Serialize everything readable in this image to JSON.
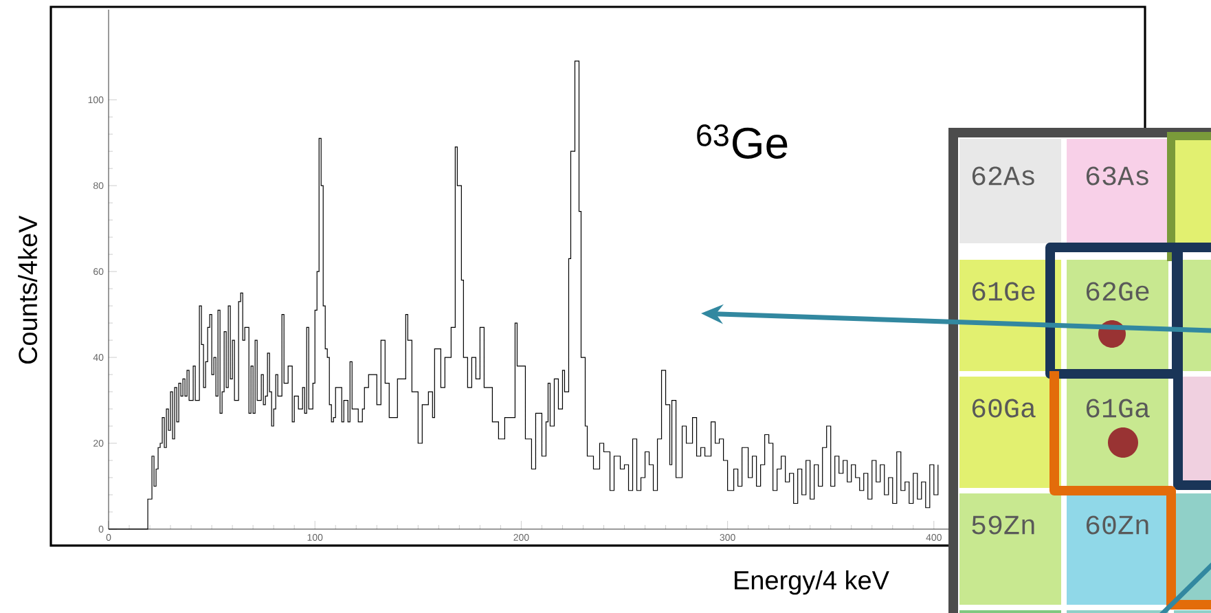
{
  "chart_data": {
    "type": "step",
    "xlabel": "Energy/4 keV",
    "ylabel": "Counts/4keV",
    "color": "#000000",
    "annotations": [
      "$^{63}$Ge",
      "62As",
      "63As",
      "61Ge",
      "62Ge",
      "60Ga",
      "61Ga",
      "59Zn",
      "60Zn"
    ],
    "x": [
      0,
      19,
      21,
      22,
      23,
      24,
      25,
      26,
      27,
      28,
      29,
      30,
      31,
      32,
      33,
      34,
      35,
      36,
      37,
      38,
      39,
      41,
      42,
      44,
      45,
      46,
      47,
      48,
      49,
      50,
      51,
      52,
      53,
      54,
      55,
      56,
      57,
      58,
      59,
      60,
      61,
      63,
      64,
      65,
      66,
      68,
      69,
      70,
      71,
      72,
      74,
      75,
      76,
      77,
      78,
      79,
      80,
      81,
      82,
      84,
      85,
      87,
      89,
      90,
      92,
      94,
      95,
      96,
      97,
      99,
      100,
      101,
      102,
      103,
      104,
      105,
      106,
      107,
      108,
      109,
      110,
      111,
      113,
      114,
      116,
      117,
      118,
      121,
      123,
      124,
      126,
      130,
      132,
      134,
      136,
      140,
      144,
      145,
      147,
      150,
      152,
      155,
      157,
      158,
      161,
      163,
      166,
      168,
      169,
      171,
      172,
      174,
      176,
      178,
      180,
      182,
      186,
      189,
      192,
      197,
      198,
      202,
      205,
      207,
      210,
      212,
      213,
      214,
      216,
      218,
      220,
      221,
      223,
      224,
      226,
      228,
      229,
      231,
      232,
      235,
      238,
      240,
      243,
      245,
      248,
      250,
      252,
      254,
      256,
      258,
      260,
      262,
      264,
      266,
      268,
      270,
      272,
      273,
      275,
      278,
      280,
      283,
      285,
      287,
      289,
      292,
      294,
      296,
      298,
      300,
      303,
      305,
      307,
      310,
      312,
      314,
      316,
      318,
      320,
      322,
      324,
      326,
      328,
      330,
      332,
      334,
      336,
      338,
      340,
      342,
      344,
      346,
      348,
      350,
      352,
      354,
      356,
      358,
      360,
      362,
      364,
      366,
      368,
      370,
      372,
      374,
      376,
      378,
      380,
      382,
      384,
      386,
      388,
      390,
      392,
      394,
      396,
      398,
      400,
      402
    ],
    "values": [
      0,
      7,
      17,
      10,
      14,
      19,
      20,
      26,
      19,
      28,
      23,
      32,
      21,
      33,
      25,
      34,
      31,
      35,
      31,
      37,
      30,
      38,
      30,
      52,
      43,
      33,
      39,
      47,
      50,
      36,
      40,
      31,
      51,
      27,
      32,
      46,
      33,
      52,
      35,
      44,
      30,
      53,
      55,
      44,
      47,
      27,
      38,
      27,
      44,
      30,
      36,
      29,
      31,
      41,
      32,
      24,
      28,
      36,
      31,
      50,
      34,
      38,
      25,
      31,
      28,
      33,
      27,
      47,
      28,
      34,
      51,
      60,
      91,
      80,
      52,
      42,
      40,
      29,
      25,
      26,
      33,
      33,
      25,
      30,
      25,
      39,
      28,
      25,
      28,
      33,
      36,
      29,
      44,
      34,
      26,
      35,
      50,
      44,
      32,
      20,
      29,
      32,
      26,
      42,
      33,
      40,
      47,
      89,
      80,
      58,
      40,
      33,
      40,
      35,
      47,
      33,
      25,
      21,
      26,
      48,
      38,
      21,
      14,
      27,
      17,
      25,
      34,
      24,
      35,
      28,
      37,
      32,
      63,
      88,
      109,
      74,
      40,
      24,
      17,
      14,
      20,
      18,
      9,
      17,
      14,
      15,
      9,
      21,
      9,
      12,
      18,
      15,
      9,
      21,
      37,
      29,
      15,
      30,
      12,
      24,
      20,
      26,
      17,
      19,
      17,
      25,
      20,
      21,
      16,
      9,
      14,
      10,
      19,
      12,
      17,
      10,
      15,
      22,
      20,
      9,
      14,
      17,
      11,
      13,
      6,
      14,
      8,
      16,
      7,
      15,
      10,
      19,
      24,
      10,
      17,
      13,
      16,
      11,
      15,
      12,
      9,
      13,
      7,
      16,
      11,
      15,
      8,
      12,
      6,
      18,
      9,
      11,
      6,
      13,
      7,
      11,
      5,
      15,
      8,
      15
    ],
    "xlim": [
      0,
      497
    ],
    "ylim": [
      0,
      121
    ],
    "xticks": [
      0,
      100,
      200,
      300,
      400
    ],
    "yticks": [
      0,
      20,
      40,
      60,
      80,
      100
    ]
  }
}
